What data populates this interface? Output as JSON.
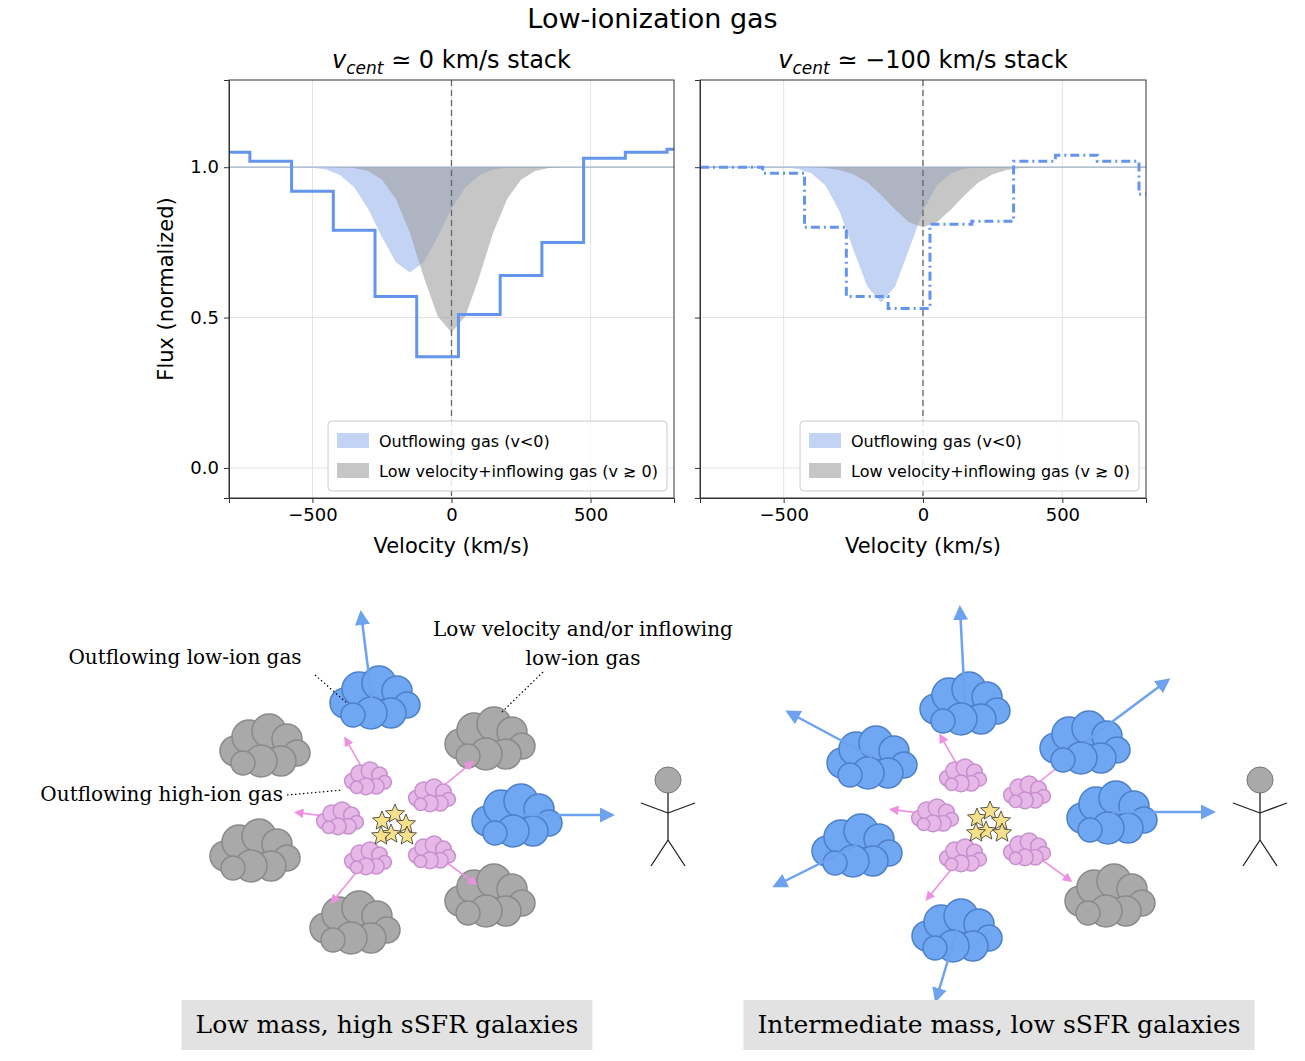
{
  "title": "Low-ionization gas",
  "chart_data": [
    {
      "type": "line",
      "title": "vcent ≃ 0 km/s stack",
      "x_label": "Velocity (km/s)",
      "y_label": "Flux (normalized)",
      "xlim": [
        -800,
        800
      ],
      "ylim": [
        -0.1,
        1.29
      ],
      "xticks": [
        {
          "value": -500,
          "label": "−500"
        },
        0,
        500
      ],
      "yticks": [
        {
          "value": 0,
          "label": "0.0"
        },
        {
          "value": 0.5,
          "label": "0.5"
        },
        {
          "value": 1,
          "label": "1.0"
        }
      ],
      "grid": true,
      "legend": "lower right",
      "vline": 0,
      "hline": 1,
      "series": [
        {
          "type": "step",
          "line_style": "solid",
          "color": "#6495ed",
          "x": [
            -800,
            -650,
            -500,
            -350,
            -200,
            -50,
            100,
            250,
            400,
            550,
            700,
            850
          ],
          "values": [
            1.05,
            1.02,
            0.92,
            0.79,
            0.57,
            0.37,
            0.51,
            0.64,
            0.75,
            1.03,
            1.05,
            1.06
          ]
        },
        {
          "name": "Outflowing gas (v<0)",
          "type": "area",
          "color": "#a8c0ee",
          "x": [
            -600,
            -550,
            -500,
            -450,
            -400,
            -350,
            -300,
            -250,
            -200,
            -150,
            -100,
            -50,
            0,
            50,
            100,
            150,
            200,
            250
          ],
          "values": [
            1.0,
            1.0,
            0.998,
            0.992,
            0.973,
            0.933,
            0.862,
            0.768,
            0.684,
            0.65,
            0.684,
            0.768,
            0.862,
            0.933,
            0.973,
            0.992,
            0.998,
            1.0
          ]
        },
        {
          "name": "Low velocity+inflowing gas (v ≳ 0)",
          "type": "area",
          "color": "#a0a0a0",
          "x": [
            -450,
            -400,
            -350,
            -300,
            -250,
            -200,
            -150,
            -100,
            -50,
            0,
            50,
            100,
            150,
            200,
            250,
            300,
            350,
            400,
            450
          ],
          "values": [
            1.0,
            0.999,
            0.997,
            0.987,
            0.958,
            0.894,
            0.783,
            0.636,
            0.504,
            0.45,
            0.504,
            0.636,
            0.783,
            0.894,
            0.958,
            0.987,
            0.997,
            0.999,
            1.0
          ]
        }
      ]
    },
    {
      "type": "line",
      "title": "vcent ≃ −100 km/s stack",
      "x_label": "Velocity (km/s)",
      "xlim": [
        -800,
        800
      ],
      "ylim": [
        -0.1,
        1.29
      ],
      "xticks": [
        {
          "value": -500,
          "label": "−500"
        },
        0,
        500
      ],
      "yticks": [
        0,
        0.5,
        1
      ],
      "tick_labels": "x",
      "grid": true,
      "legend": "lower right",
      "vline": 0,
      "hline": 1,
      "series": [
        {
          "type": "step",
          "line_style": "dashdot",
          "color": "#6495ed",
          "x": [
            -800,
            -650,
            -500,
            -350,
            -200,
            -50,
            100,
            250,
            400,
            550,
            700,
            850
          ],
          "values": [
            1.0,
            1.0,
            0.98,
            0.8,
            0.57,
            0.53,
            0.81,
            0.82,
            1.02,
            1.04,
            1.02,
            0.91
          ]
        },
        {
          "name": "Outflowing gas (v<0)",
          "type": "area",
          "color": "#a8c0ee",
          "x": [
            -550,
            -500,
            -450,
            -400,
            -350,
            -300,
            -250,
            -200,
            -150,
            -100,
            -50,
            0,
            50,
            100,
            150,
            200,
            250
          ],
          "values": [
            1.0,
            0.999,
            0.995,
            0.98,
            0.939,
            0.854,
            0.727,
            0.603,
            0.55,
            0.603,
            0.727,
            0.854,
            0.939,
            0.98,
            0.995,
            0.999,
            1.0
          ]
        },
        {
          "name": "Low velocity+inflowing gas (v ≳ 0)",
          "type": "area",
          "color": "#a0a0a0",
          "x": [
            -400,
            -350,
            -300,
            -250,
            -200,
            -150,
            -100,
            -50,
            0,
            50,
            100,
            150,
            200,
            250,
            300,
            350,
            400
          ],
          "values": [
            0.999,
            0.997,
            0.991,
            0.977,
            0.95,
            0.908,
            0.859,
            0.817,
            0.8,
            0.817,
            0.859,
            0.908,
            0.95,
            0.977,
            0.991,
            0.997,
            0.999
          ]
        }
      ]
    }
  ],
  "diagram": {
    "panels": [
      {
        "caption": "Low mass, high sSFR galaxies",
        "labels": {
          "outflowing_low_ion": "Outflowing low-ion gas",
          "inflowing_low_ion": "Low velocity and/or inflowing low-ion gas",
          "outflowing_high_ion": "Outflowing high-ion gas"
        }
      },
      {
        "caption": "Intermediate mass, low sSFR galaxies"
      }
    ]
  }
}
